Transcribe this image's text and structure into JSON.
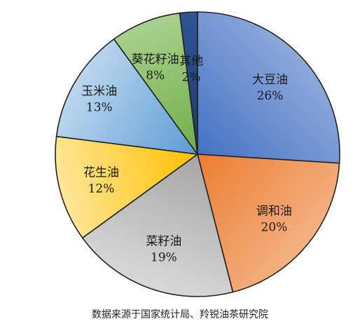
{
  "chart_data": {
    "type": "pie",
    "title": "",
    "slices": [
      {
        "label": "大豆油",
        "value": 26,
        "value_text": "26%",
        "colors": [
          "#4472c4",
          "#8ea9db"
        ]
      },
      {
        "label": "调和油",
        "value": 20,
        "value_text": "20%",
        "colors": [
          "#ed7d31",
          "#f4b183"
        ]
      },
      {
        "label": "菜籽油",
        "value": 19,
        "value_text": "19%",
        "colors": [
          "#a5a5a5",
          "#d9d9d9"
        ]
      },
      {
        "label": "花生油",
        "value": 12,
        "value_text": "12%",
        "colors": [
          "#ffc000",
          "#ffe699"
        ]
      },
      {
        "label": "玉米油",
        "value": 13,
        "value_text": "13%",
        "colors": [
          "#5b9bd5",
          "#bdd7ee"
        ]
      },
      {
        "label": "葵花籽油",
        "value": 8,
        "value_text": "8%",
        "colors": [
          "#70ad47",
          "#a9d18e"
        ]
      },
      {
        "label": "其他",
        "value": 2,
        "value_text": "2%",
        "colors": [
          "#1f3864",
          "#2f5597"
        ]
      }
    ],
    "start_angle": "12 o'clock",
    "direction": "clockwise",
    "legend": "none"
  },
  "source_note": "数据来源于国家统计局、羚锐油茶研究院"
}
